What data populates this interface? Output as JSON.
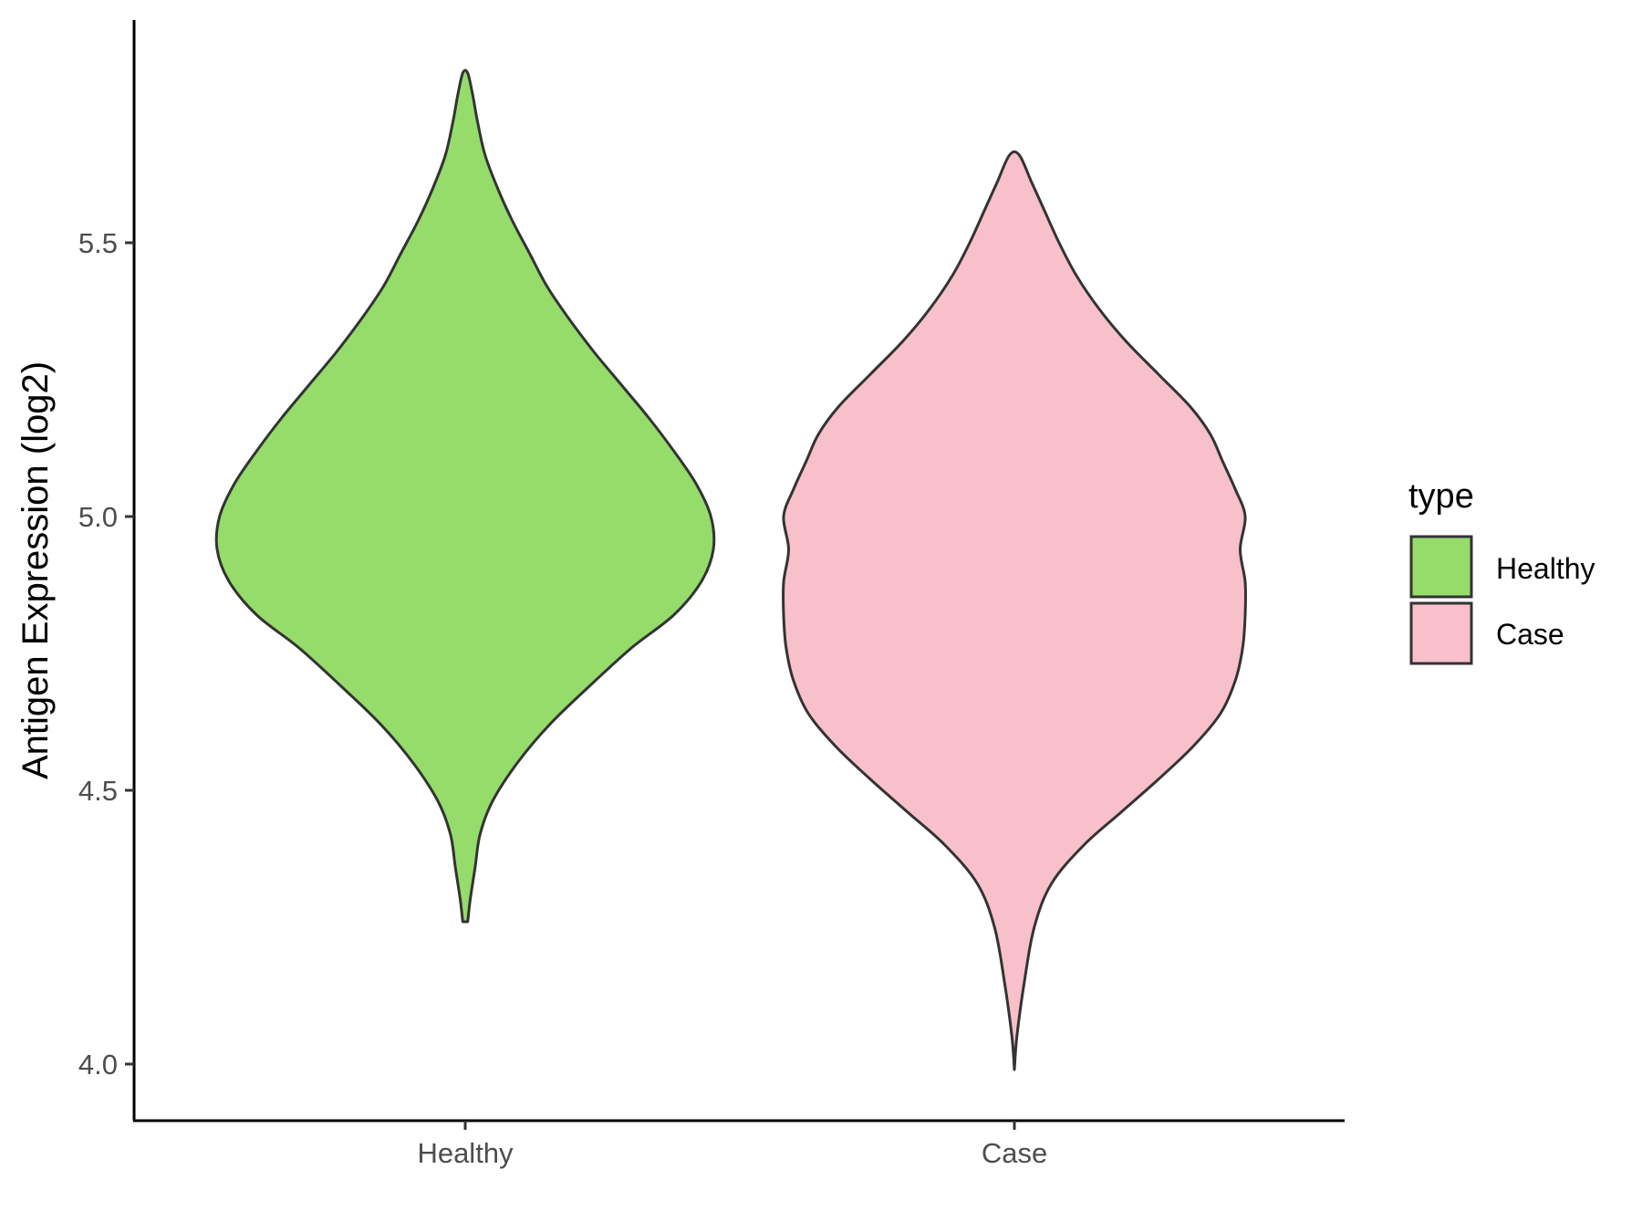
{
  "chart_data": {
    "type": "violin",
    "title": "",
    "xlabel": "",
    "ylabel": "Antigen Expression (log2)",
    "ylim": [
      3.9,
      5.92
    ],
    "yticks": [
      4.0,
      4.5,
      5.0,
      5.5
    ],
    "ytick_labels": [
      "4.0",
      "4.5",
      "5.0",
      "5.5"
    ],
    "categories": [
      "Healthy",
      "Case"
    ],
    "grid": false,
    "legend": {
      "title": "type",
      "position": "right",
      "entries": [
        "Healthy",
        "Case"
      ]
    },
    "colors": {
      "Healthy": "#95dc6b",
      "Case": "#f7c0cb",
      "outline": "#333333",
      "axis": "#000000",
      "tick_label": "#4d4d4d"
    },
    "series": [
      {
        "name": "Healthy",
        "min": 4.26,
        "max": 5.81,
        "profile": [
          [
            4.26,
            0.01
          ],
          [
            4.3,
            0.02
          ],
          [
            4.36,
            0.04
          ],
          [
            4.42,
            0.06
          ],
          [
            4.48,
            0.11
          ],
          [
            4.55,
            0.21
          ],
          [
            4.62,
            0.34
          ],
          [
            4.69,
            0.5
          ],
          [
            4.76,
            0.67
          ],
          [
            4.82,
            0.84
          ],
          [
            4.88,
            0.95
          ],
          [
            4.94,
            1.0
          ],
          [
            5.0,
            0.99
          ],
          [
            5.06,
            0.93
          ],
          [
            5.12,
            0.84
          ],
          [
            5.18,
            0.74
          ],
          [
            5.24,
            0.63
          ],
          [
            5.3,
            0.52
          ],
          [
            5.36,
            0.42
          ],
          [
            5.42,
            0.33
          ],
          [
            5.48,
            0.26
          ],
          [
            5.54,
            0.19
          ],
          [
            5.6,
            0.13
          ],
          [
            5.66,
            0.08
          ],
          [
            5.72,
            0.05
          ],
          [
            5.77,
            0.03
          ],
          [
            5.81,
            0.01
          ]
        ]
      },
      {
        "name": "Case",
        "min": 3.99,
        "max": 5.66,
        "profile": [
          [
            3.99,
            0.0
          ],
          [
            4.05,
            0.01
          ],
          [
            4.15,
            0.04
          ],
          [
            4.25,
            0.08
          ],
          [
            4.33,
            0.15
          ],
          [
            4.4,
            0.28
          ],
          [
            4.46,
            0.43
          ],
          [
            4.52,
            0.58
          ],
          [
            4.58,
            0.72
          ],
          [
            4.64,
            0.83
          ],
          [
            4.7,
            0.89
          ],
          [
            4.76,
            0.92
          ],
          [
            4.82,
            0.93
          ],
          [
            4.88,
            0.93
          ],
          [
            4.94,
            0.91
          ],
          [
            5.0,
            0.93
          ],
          [
            5.05,
            0.89
          ],
          [
            5.1,
            0.84
          ],
          [
            5.15,
            0.79
          ],
          [
            5.2,
            0.71
          ],
          [
            5.26,
            0.58
          ],
          [
            5.32,
            0.45
          ],
          [
            5.38,
            0.34
          ],
          [
            5.44,
            0.25
          ],
          [
            5.5,
            0.18
          ],
          [
            5.56,
            0.12
          ],
          [
            5.61,
            0.07
          ],
          [
            5.66,
            0.02
          ]
        ]
      }
    ]
  }
}
